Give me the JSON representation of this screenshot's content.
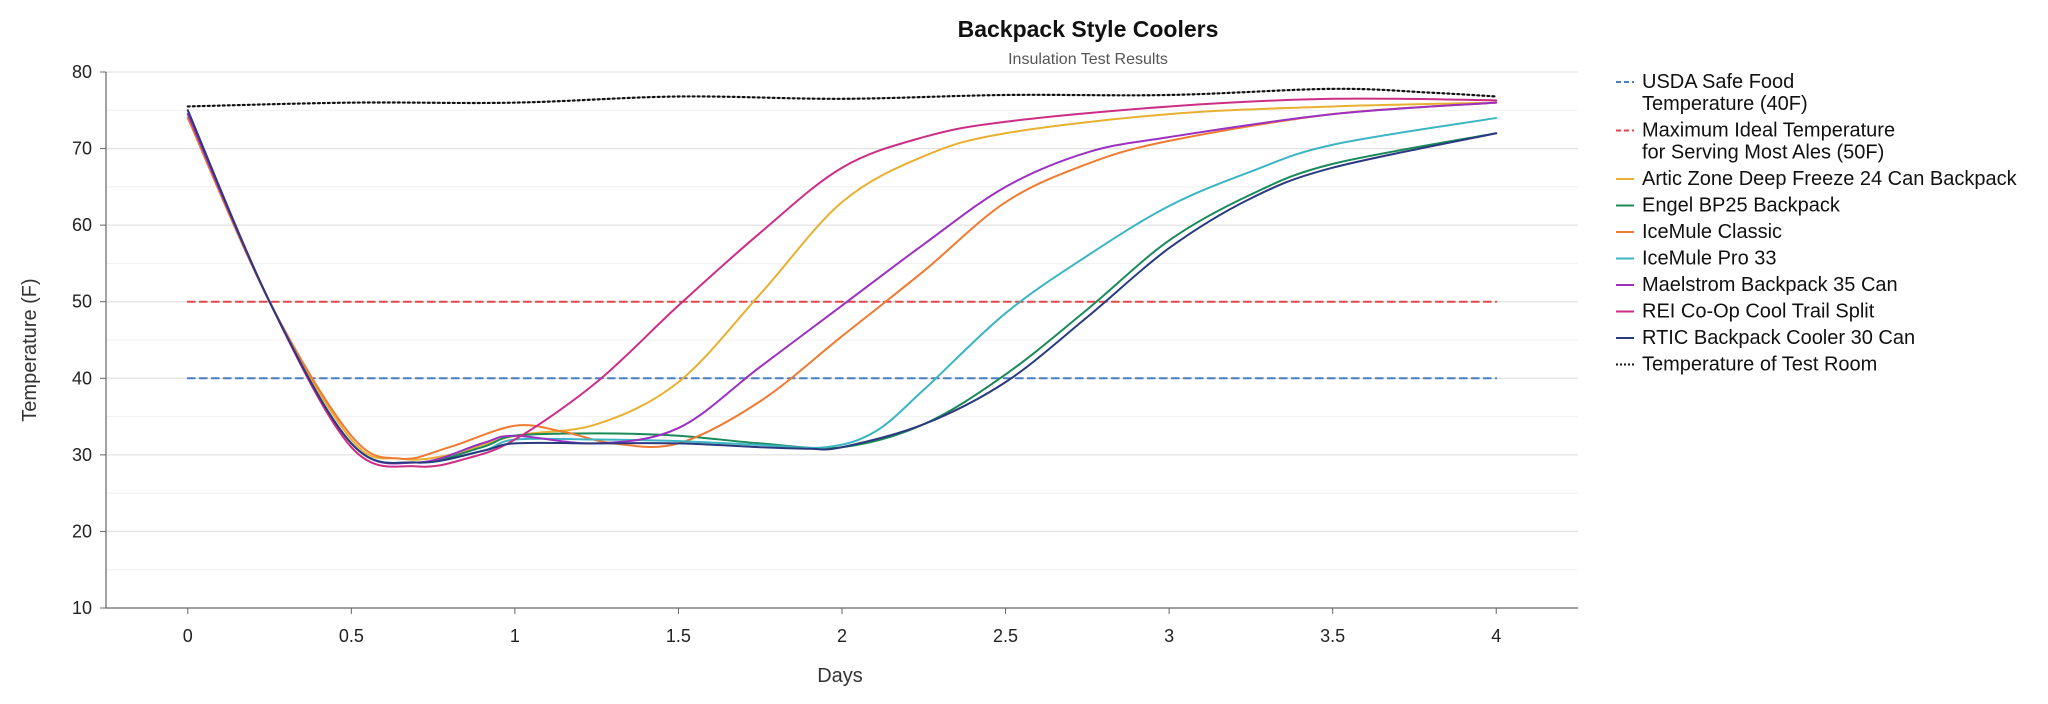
{
  "chart_data": {
    "type": "line",
    "title": "Backpack Style Coolers",
    "subtitle": "Insulation Test Results",
    "xlabel": "Days",
    "ylabel": "Temperature (F)",
    "xlim": [
      -0.25,
      4.25
    ],
    "ylim": [
      10,
      80
    ],
    "xticks": [
      0,
      0.5,
      1,
      1.5,
      2,
      2.5,
      3,
      3.5,
      4
    ],
    "xtick_labels": [
      "0",
      "0.5",
      "1",
      "1.5",
      "2",
      "2.5",
      "3",
      "3.5",
      "4"
    ],
    "yticks": [
      10,
      20,
      30,
      40,
      50,
      60,
      70,
      80
    ],
    "ytick_labels": [
      "10",
      "20",
      "30",
      "40",
      "50",
      "60",
      "70",
      "80"
    ],
    "grid": "horizontal",
    "legend_position": "right",
    "series": [
      {
        "name": "USDA Safe Food Temperature (40F)",
        "legend_lines": [
          "USDA Safe Food",
          "Temperature (40F)"
        ],
        "color": "#4a7fc1",
        "style": "dashed",
        "x": [
          0,
          4
        ],
        "y": [
          40,
          40
        ]
      },
      {
        "name": "Maximum Ideal Temperature for Serving Most Ales (50F)",
        "legend_lines": [
          "Maximum Ideal Temperature",
          "for Serving Most Ales (50F)"
        ],
        "color": "#e0474c",
        "style": "dashed",
        "x": [
          0,
          4
        ],
        "y": [
          50,
          50
        ]
      },
      {
        "name": "Artic Zone Deep Freeze 24 Can Backpack",
        "legend_lines": [
          "Artic Zone Deep Freeze 24 Can Backpack"
        ],
        "color": "#e8b030",
        "style": "solid",
        "x": [
          0,
          0.25,
          0.5,
          0.65,
          0.8,
          1,
          1.25,
          1.5,
          1.75,
          2,
          2.25,
          2.5,
          3,
          3.5,
          4
        ],
        "y": [
          74.5,
          50,
          32,
          29.5,
          30,
          32.5,
          34,
          39.5,
          51,
          63,
          69,
          72,
          74.5,
          75.5,
          76
        ]
      },
      {
        "name": "Engel BP25 Backpack",
        "legend_lines": [
          "Engel BP25 Backpack"
        ],
        "color": "#1a8a5a",
        "style": "solid",
        "x": [
          0,
          0.25,
          0.5,
          0.7,
          0.9,
          1,
          1.25,
          1.5,
          1.75,
          2,
          2.25,
          2.5,
          2.75,
          3,
          3.25,
          3.5,
          4
        ],
        "y": [
          74.5,
          50,
          31.5,
          29,
          31,
          32.5,
          32.8,
          32.5,
          31.5,
          31,
          34,
          40.5,
          49,
          58,
          64,
          68,
          72
        ]
      },
      {
        "name": "IceMule Classic",
        "legend_lines": [
          "IceMule Classic"
        ],
        "color": "#f07a32",
        "style": "solid",
        "x": [
          0,
          0.25,
          0.5,
          0.65,
          0.8,
          1,
          1.15,
          1.3,
          1.5,
          1.75,
          2,
          2.25,
          2.5,
          2.75,
          3,
          3.5,
          4
        ],
        "y": [
          74,
          50,
          32.5,
          29.5,
          31,
          33.8,
          33,
          31.5,
          31.5,
          37,
          45.5,
          54,
          63,
          68,
          71,
          74.5,
          76
        ]
      },
      {
        "name": "IceMule Pro 33",
        "legend_lines": [
          "IceMule Pro 33"
        ],
        "color": "#3bb5c2",
        "style": "solid",
        "x": [
          0,
          0.25,
          0.5,
          0.7,
          0.9,
          1,
          1.25,
          1.5,
          1.75,
          1.95,
          2.1,
          2.25,
          2.5,
          2.75,
          3,
          3.25,
          3.5,
          4
        ],
        "y": [
          74.5,
          50,
          31.5,
          29,
          30.5,
          32,
          32,
          31.8,
          31.3,
          31,
          33,
          38.5,
          48.5,
          56,
          62.5,
          67,
          70.5,
          74
        ]
      },
      {
        "name": "Maelstrom Backpack 35 Can",
        "legend_lines": [
          "Maelstrom Backpack 35 Can"
        ],
        "color": "#9b30c2",
        "style": "solid",
        "x": [
          0,
          0.25,
          0.5,
          0.7,
          0.9,
          1,
          1.25,
          1.5,
          1.75,
          2,
          2.25,
          2.5,
          2.75,
          3,
          3.5,
          4
        ],
        "y": [
          74.5,
          50,
          31.5,
          29,
          31.5,
          32.5,
          31.5,
          33.5,
          41.5,
          49.5,
          57.5,
          65,
          69.5,
          71.5,
          74.5,
          76
        ]
      },
      {
        "name": "REI Co-Op Cool Trail Split",
        "legend_lines": [
          "REI Co-Op Cool Trail Split"
        ],
        "color": "#cc2e86",
        "style": "solid",
        "x": [
          0,
          0.25,
          0.5,
          0.7,
          0.85,
          1,
          1.25,
          1.5,
          1.75,
          2,
          2.25,
          2.5,
          3,
          3.5,
          4
        ],
        "y": [
          75,
          50,
          31,
          28.5,
          29.5,
          32,
          39.5,
          49.5,
          59,
          67.5,
          71.5,
          73.5,
          75.5,
          76.5,
          76.3
        ]
      },
      {
        "name": "RTIC Backpack Cooler 30 Can",
        "legend_lines": [
          "RTIC Backpack Cooler 30 Can"
        ],
        "color": "#2a3a7e",
        "style": "solid",
        "x": [
          0,
          0.25,
          0.5,
          0.7,
          0.9,
          1,
          1.25,
          1.5,
          1.75,
          1.9,
          2,
          2.25,
          2.5,
          2.75,
          3,
          3.25,
          3.5,
          4
        ],
        "y": [
          75,
          50,
          31.5,
          29,
          30.5,
          31.5,
          31.5,
          31.5,
          31,
          30.8,
          31,
          34,
          39.5,
          48,
          57,
          63.5,
          67.5,
          72
        ]
      },
      {
        "name": "Temperature of Test Room",
        "legend_lines": [
          "Temperature of Test Room"
        ],
        "color": "#111111",
        "style": "dotted",
        "x": [
          0,
          0.5,
          1,
          1.5,
          2,
          2.5,
          3,
          3.5,
          3.8,
          4
        ],
        "y": [
          75.5,
          76,
          76,
          76.8,
          76.5,
          77,
          77,
          77.8,
          77.3,
          76.8
        ]
      }
    ]
  }
}
